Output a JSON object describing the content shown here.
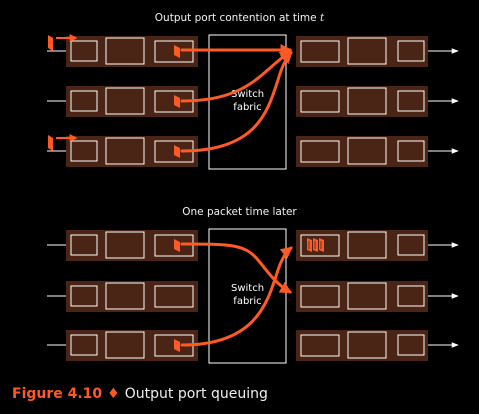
{
  "panels": [
    {
      "title": "Output port contention at time ",
      "title_var": "t",
      "fabric_line1": "Switch",
      "fabric_line2": "fabric"
    },
    {
      "title": "One packet time later",
      "fabric_line1": "Switch",
      "fabric_line2": "fabric"
    }
  ],
  "caption": {
    "figure": "Figure 4.10",
    "separator": "♦",
    "text": "Output port queuing"
  },
  "colors": {
    "background": "#000000",
    "port": "#4a2414",
    "packet": "#ff5a24",
    "line": "#ffffff"
  }
}
